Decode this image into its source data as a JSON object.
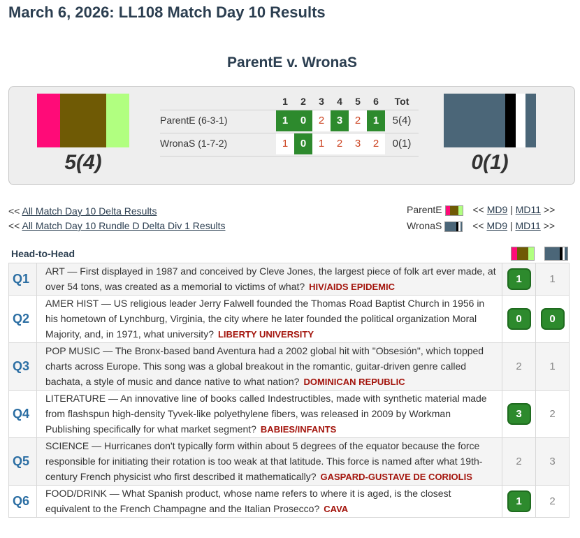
{
  "page_title": "March 6, 2026: LL108 Match Day 10 Results",
  "matchup_title": "ParentE v. WronaS",
  "player1": {
    "name": "ParentE",
    "record_label": "ParentE (6-3-1)",
    "score": "5(4)",
    "flag": [
      "#ff0b78",
      "#6f5a05",
      "#b1ff80"
    ],
    "results": [
      "1",
      "0",
      "2",
      "3",
      "2",
      "1"
    ],
    "total": "5(4)"
  },
  "player2": {
    "name": "WronaS",
    "record_label": "WronaS (1-7-2)",
    "score": "0(1)",
    "flag": [
      "#4b6678",
      "#000000",
      "#ffffff",
      "#4b6678"
    ],
    "results": [
      "1",
      "0",
      "1",
      "2",
      "3",
      "2"
    ],
    "total": "0(1)"
  },
  "grid_headers": [
    "1",
    "2",
    "3",
    "4",
    "5",
    "6",
    "Tot"
  ],
  "links": {
    "prefix": "<<",
    "all_delta": "All Match Day 10 Delta Results",
    "all_rundle": "All Match Day 10 Rundle D Delta Div 1 Results"
  },
  "nav": {
    "prev_prefix": "<<",
    "prev": "MD9",
    "sep": "|",
    "next": "MD11",
    "next_suffix": ">>"
  },
  "h2h_label": "Head-to-Head",
  "questions": [
    {
      "num": "Q1",
      "text": "ART — First displayed in 1987 and conceived by Cleve Jones, the largest piece of folk art ever made, at over 54 tons, was created as a memorial to victims of what?",
      "answer": "HIV/AIDS EPIDEMIC",
      "p1": "1",
      "p2": "1",
      "p1win": true,
      "p2win": false
    },
    {
      "num": "Q2",
      "text": "AMER HIST — US religious leader Jerry Falwell founded the Thomas Road Baptist Church in 1956 in his hometown of Lynchburg, Virginia, the city where he later founded the political organization Moral Majority, and, in 1971, what university?",
      "answer": "LIBERTY UNIVERSITY",
      "p1": "0",
      "p2": "0",
      "p1win": true,
      "p2win": true
    },
    {
      "num": "Q3",
      "text": "POP MUSIC — The Bronx-based band Aventura had a 2002 global hit with \"Obsesión\", which topped charts across Europe. This song was a global breakout in the romantic, guitar-driven genre called bachata, a style of music and dance native to what nation?",
      "answer": "DOMINICAN REPUBLIC",
      "p1": "2",
      "p2": "1",
      "p1win": false,
      "p2win": false
    },
    {
      "num": "Q4",
      "text": "LITERATURE — An innovative line of books called Indestructibles, made with synthetic material made from flashspun high-density Tyvek-like polyethylene fibers, was released in 2009 by Workman Publishing specifically for what market segment?",
      "answer": "BABIES/INFANTS",
      "p1": "3",
      "p2": "2",
      "p1win": true,
      "p2win": false
    },
    {
      "num": "Q5",
      "text": "SCIENCE — Hurricanes don't typically form within about 5 degrees of the equator because the force responsible for initiating their rotation is too weak at that latitude. This force is named after what 19th-century French physicist who first described it mathematically?",
      "answer": "GASPARD-GUSTAVE DE CORIOLIS",
      "p1": "2",
      "p2": "3",
      "p1win": false,
      "p2win": false
    },
    {
      "num": "Q6",
      "text": "FOOD/DRINK — What Spanish product, whose name refers to where it is aged, is the closest equivalent to the French Champagne and the Italian Prosecco?",
      "answer": "CAVA",
      "p1": "1",
      "p2": "2",
      "p1win": true,
      "p2win": false
    }
  ]
}
